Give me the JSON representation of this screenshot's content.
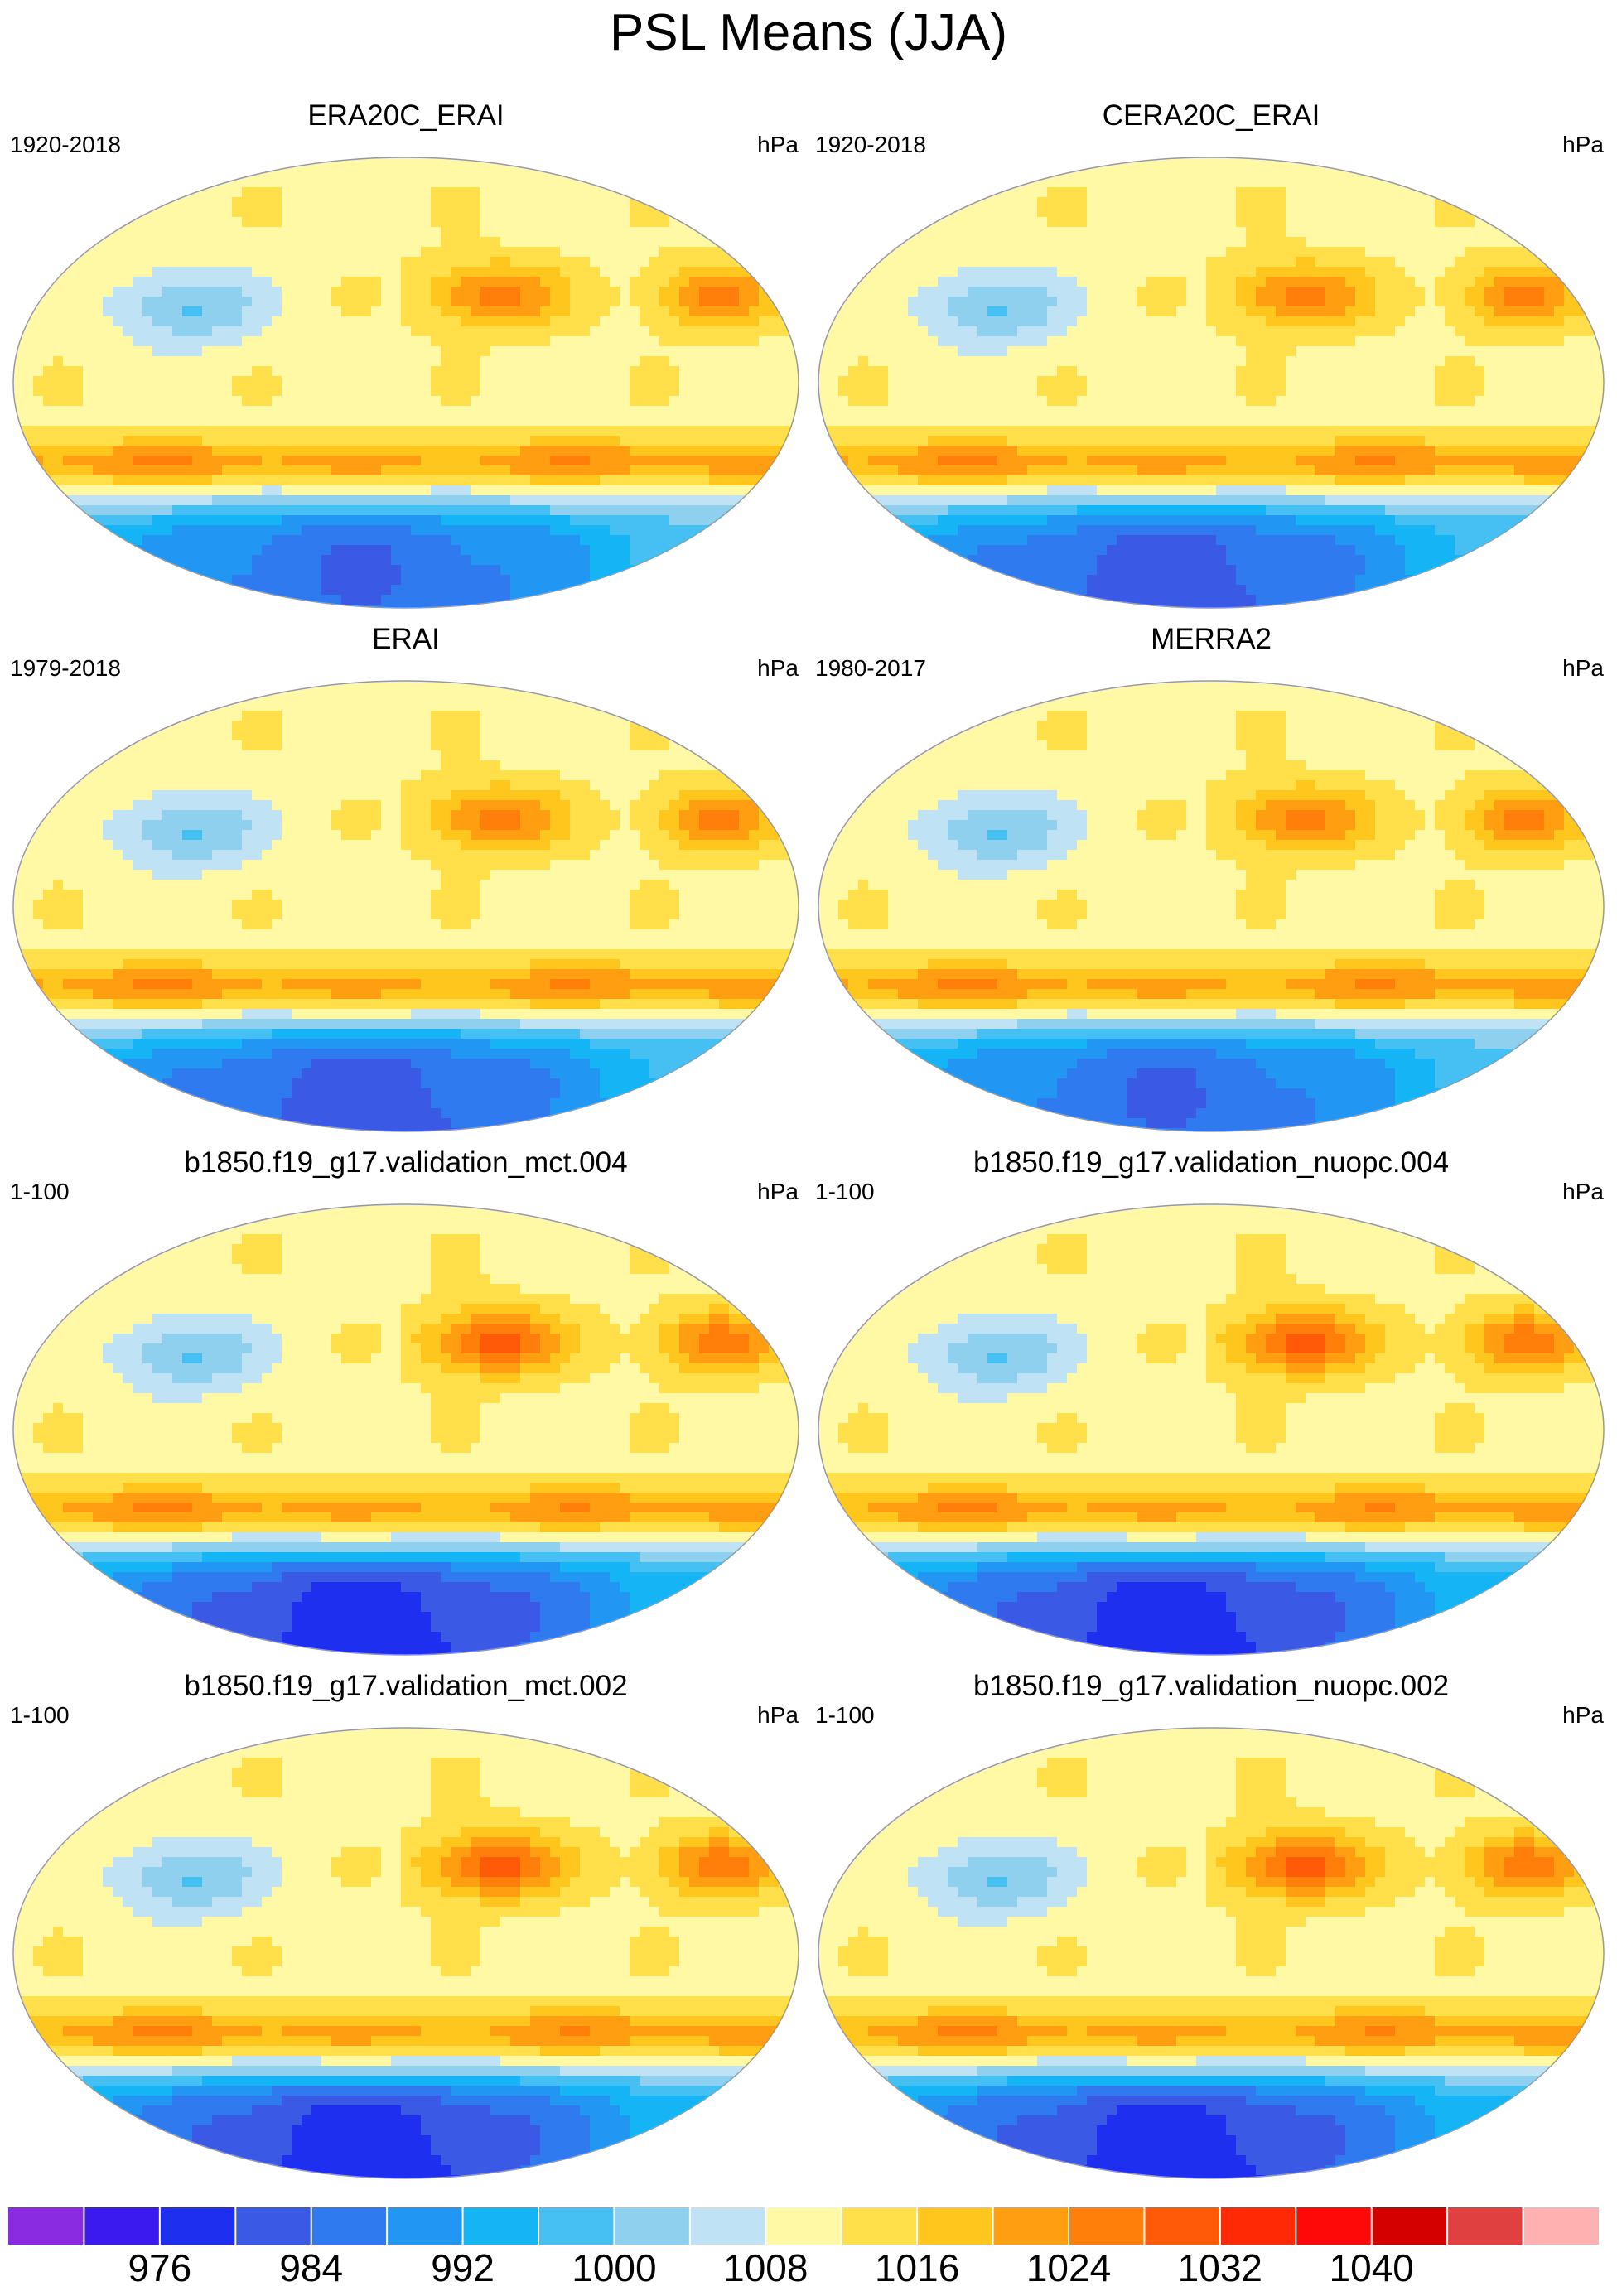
{
  "title": "PSL Means (JJA)",
  "panels": [
    {
      "title": "ERA20C_ERAI",
      "period": "1920-2018",
      "units": "hPa"
    },
    {
      "title": "CERA20C_ERAI",
      "period": "1920-2018",
      "units": "hPa"
    },
    {
      "title": "ERAI",
      "period": "1979-2018",
      "units": "hPa"
    },
    {
      "title": "MERRA2",
      "period": "1980-2017",
      "units": "hPa"
    },
    {
      "title": "b1850.f19_g17.validation_mct.004",
      "period": "1-100",
      "units": "hPa"
    },
    {
      "title": "b1850.f19_g17.validation_nuopc.004",
      "period": "1-100",
      "units": "hPa"
    },
    {
      "title": "b1850.f19_g17.validation_mct.002",
      "period": "1-100",
      "units": "hPa"
    },
    {
      "title": "b1850.f19_g17.validation_nuopc.002",
      "period": "1-100",
      "units": "hPa"
    }
  ],
  "colorbar": {
    "labels": [
      "976",
      "984",
      "992",
      "1000",
      "1008",
      "1016",
      "1024",
      "1032",
      "1040"
    ],
    "colors": [
      "#8a2be2",
      "#3a1aee",
      "#1f2ff0",
      "#3a5ae6",
      "#2f7aee",
      "#2196f3",
      "#14b4f5",
      "#46c0f2",
      "#8fd0ee",
      "#bfe3f5",
      "#fff9a6",
      "#ffe04a",
      "#ffc61e",
      "#ff9e10",
      "#ff7f0a",
      "#ff5a08",
      "#ff2a05",
      "#ff0808",
      "#d40000",
      "#e04040",
      "#ffb0b0"
    ]
  },
  "chart_data": {
    "type": "heatmap",
    "title": "PSL Means (JJA)",
    "units": "hPa",
    "projection": "Robinson (Pacific-centered)",
    "contour_levels": [
      972,
      976,
      980,
      984,
      988,
      992,
      996,
      1000,
      1004,
      1008,
      1012,
      1016,
      1020,
      1024,
      1028,
      1032,
      1036,
      1040,
      1044
    ],
    "colorbar_ticks": [
      976,
      984,
      992,
      1000,
      1008,
      1016,
      1024,
      1032,
      1040
    ],
    "panels": [
      {
        "name": "ERA20C_ERAI",
        "period": "1920-2018",
        "north_pacific_high_max": 1026,
        "north_atlantic_high_max": 1025,
        "southern_ocean_min": 984
      },
      {
        "name": "CERA20C_ERAI",
        "period": "1920-2018",
        "north_pacific_high_max": 1026,
        "north_atlantic_high_max": 1025,
        "southern_ocean_min": 982
      },
      {
        "name": "ERAI",
        "period": "1979-2018",
        "north_pacific_high_max": 1026,
        "north_atlantic_high_max": 1025,
        "southern_ocean_min": 982
      },
      {
        "name": "MERRA2",
        "period": "1980-2017",
        "north_pacific_high_max": 1026,
        "north_atlantic_high_max": 1025,
        "southern_ocean_min": 984
      },
      {
        "name": "b1850.f19_g17.validation_mct.004",
        "period": "1-100",
        "north_pacific_high_max": 1030,
        "north_atlantic_high_max": 1026,
        "southern_ocean_min": 978
      },
      {
        "name": "b1850.f19_g17.validation_nuopc.004",
        "period": "1-100",
        "north_pacific_high_max": 1030,
        "north_atlantic_high_max": 1026,
        "southern_ocean_min": 978
      },
      {
        "name": "b1850.f19_g17.validation_mct.002",
        "period": "1-100",
        "north_pacific_high_max": 1030,
        "north_atlantic_high_max": 1026,
        "southern_ocean_min": 978
      },
      {
        "name": "b1850.f19_g17.validation_nuopc.002",
        "period": "1-100",
        "north_pacific_high_max": 1030,
        "north_atlantic_high_max": 1026,
        "southern_ocean_min": 978
      }
    ]
  }
}
